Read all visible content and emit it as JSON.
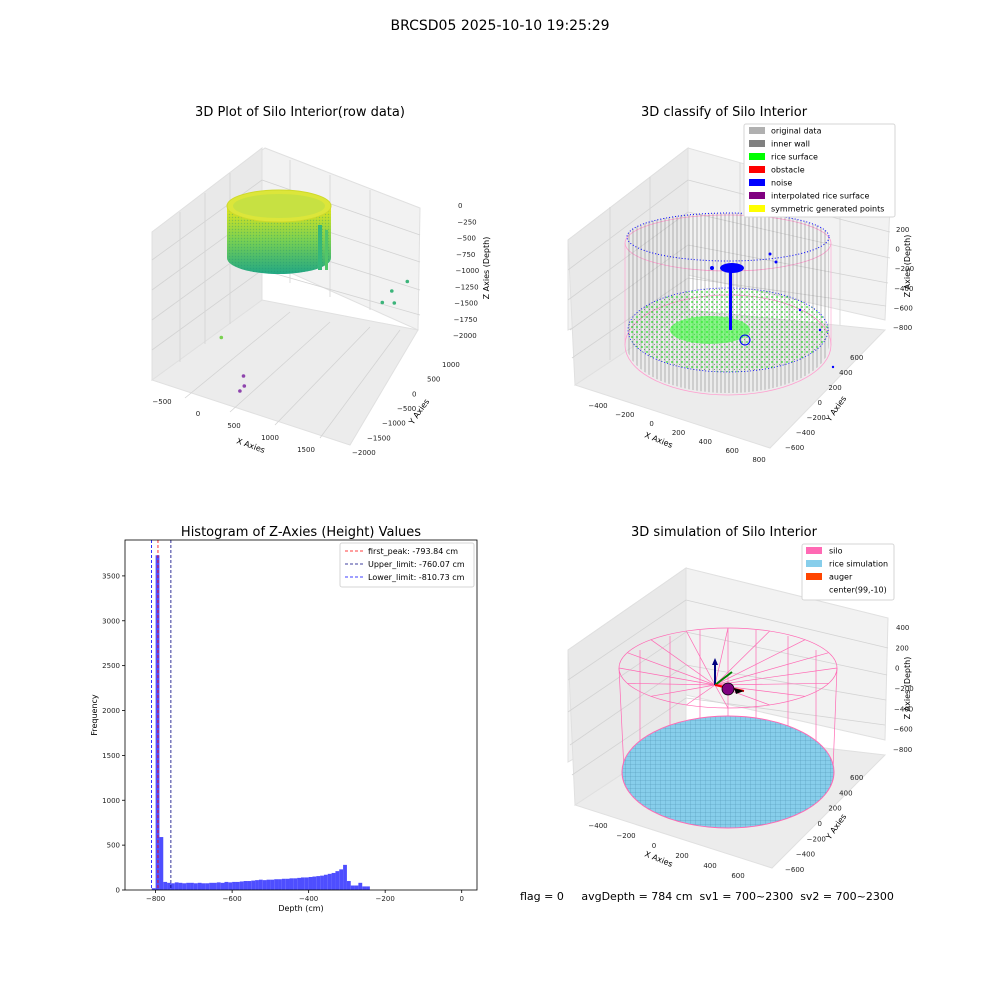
{
  "figure": {
    "suptitle": "BRCSD05 2025-10-10 19:25:29",
    "status_line": "flag = 0     avgDepth = 784 cm  sv1 = 700~2300  sv2 = 700~2300"
  },
  "colors": {
    "pane": "#f2f2f2",
    "pane_side": "#e6e6e6",
    "grid": "#d0d0d0",
    "hist_bar": "#4444ff",
    "silo": "#ff69b4",
    "rice_sim": "#87ceeb",
    "auger": "#ff4500",
    "inner_wall": "#808080",
    "rice_surface": "#00ff00",
    "noise": "#0000ff"
  },
  "chart_data": [
    {
      "id": "raw",
      "type": "scatter",
      "title": "3D Plot of Silo Interior(row data)",
      "xlabel": "X Axies",
      "ylabel": "Y Axies",
      "zlabel": "Z Axies (Depth)",
      "xticks": [
        "−500",
        "0",
        "500",
        "1000",
        "1500"
      ],
      "yticks": [
        "−2000",
        "−1500",
        "−1000",
        "−500",
        "0",
        "500",
        "1000"
      ],
      "zticks": [
        "0",
        "−250",
        "−500",
        "−750",
        "−1000",
        "−1250",
        "−1500",
        "−1750",
        "−2000"
      ],
      "outliers": [
        {
          "x": 1450,
          "y": 300,
          "z": -1000
        },
        {
          "x": 1550,
          "y": 500,
          "z": -950
        },
        {
          "x": 1400,
          "y": 150,
          "z": -1100
        },
        {
          "x": 1500,
          "y": 250,
          "z": -1150
        },
        {
          "x": -350,
          "y": -200,
          "z": -1450
        },
        {
          "x": 200,
          "y": -900,
          "z": -1700
        },
        {
          "x": 250,
          "y": -1000,
          "z": -1800
        },
        {
          "x": 220,
          "y": -1050,
          "z": -1850
        }
      ]
    },
    {
      "id": "classify",
      "type": "scatter",
      "title": "3D classify of Silo Interior",
      "xlabel": "X Axies",
      "ylabel": "Y Axies",
      "zlabel": "Z Axies (Depth)",
      "xticks": [
        "−400",
        "−200",
        "0",
        "200",
        "400",
        "600",
        "800"
      ],
      "yticks": [
        "−600",
        "−400",
        "−200",
        "0",
        "200",
        "400",
        "600"
      ],
      "zticks": [
        "200",
        "0",
        "−200",
        "−400",
        "−600",
        "−800"
      ],
      "legend": [
        {
          "label": "original data",
          "color": "#b0b0b0"
        },
        {
          "label": "inner wall",
          "color": "#808080"
        },
        {
          "label": "rice surface",
          "color": "#00ff00"
        },
        {
          "label": "obstacle",
          "color": "#ff0000"
        },
        {
          "label": "noise",
          "color": "#0000ff"
        },
        {
          "label": "interpolated rice surface",
          "color": "#800080"
        },
        {
          "label": "symmetric generated points",
          "color": "#ffff00"
        }
      ],
      "legend_loc": "upper right"
    },
    {
      "id": "hist",
      "type": "bar",
      "title": "Histogram of Z-Axies (Height) Values",
      "xlabel": "Depth (cm)",
      "ylabel": "Frequency",
      "xlim": [
        -880,
        40
      ],
      "ylim": [
        0,
        3900
      ],
      "xticks": [
        -800,
        -600,
        -400,
        -200,
        0
      ],
      "yticks": [
        0,
        500,
        1000,
        1500,
        2000,
        2500,
        3000,
        3500
      ],
      "bin_width": 10,
      "bins_start": -810,
      "values": [
        20,
        3730,
        590,
        90,
        80,
        75,
        85,
        80,
        75,
        80,
        80,
        75,
        80,
        75,
        75,
        80,
        80,
        85,
        80,
        90,
        85,
        90,
        90,
        95,
        100,
        100,
        105,
        110,
        115,
        110,
        115,
        115,
        120,
        120,
        125,
        125,
        130,
        130,
        135,
        140,
        140,
        145,
        150,
        155,
        160,
        170,
        180,
        190,
        210,
        230,
        280,
        100,
        50,
        50,
        80,
        40,
        40
      ],
      "vlines": [
        {
          "label": "first_peak: -793.84 cm",
          "x": -793.84,
          "color": "#ff0000"
        },
        {
          "label": "Upper_limit: -760.07 cm",
          "x": -760.07,
          "color": "#000080"
        },
        {
          "label": "Lower_limit: -810.73 cm",
          "x": -810.73,
          "color": "#0000ff"
        }
      ],
      "legend_loc": "upper right"
    },
    {
      "id": "sim",
      "type": "surface",
      "title": "3D simulation of Silo Interior",
      "xlabel": "X Axies",
      "ylabel": "Y Axies",
      "zlabel": "Z Axies (Depth)",
      "xticks": [
        "−400",
        "−200",
        "0",
        "200",
        "400",
        "600"
      ],
      "yticks": [
        "−600",
        "−400",
        "−200",
        "0",
        "200",
        "400",
        "600"
      ],
      "zticks": [
        "400",
        "200",
        "0",
        "−200",
        "−400",
        "−600",
        "−800"
      ],
      "legend": [
        {
          "label": "silo",
          "color": "#ff69b4"
        },
        {
          "label": "rice simulation",
          "color": "#87ceeb"
        },
        {
          "label": "auger",
          "color": "#ff4500"
        },
        {
          "label": "center(99,-10)",
          "color": "#ffffff"
        }
      ],
      "legend_loc": "upper right"
    }
  ]
}
